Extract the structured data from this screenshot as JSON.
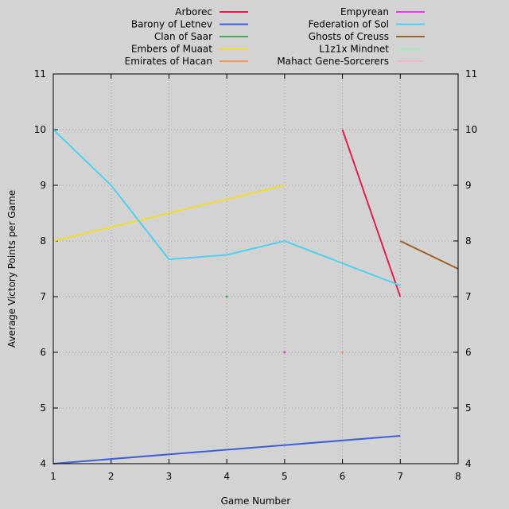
{
  "chart_data": {
    "type": "line",
    "title": "",
    "xlabel": "Game Number",
    "ylabel": "Average Victory Points per Game",
    "xlim": [
      1,
      8
    ],
    "ylim": [
      4,
      11
    ],
    "x_ticks": [
      1,
      2,
      3,
      4,
      5,
      6,
      7,
      8
    ],
    "y_ticks": [
      4,
      5,
      6,
      7,
      8,
      9,
      10,
      11
    ],
    "grid": true,
    "legend_position": "top",
    "series": [
      {
        "name": "Arborec",
        "color": "#e0204f",
        "points": [
          [
            6,
            10
          ],
          [
            7,
            7
          ]
        ]
      },
      {
        "name": "Barony of Letnev",
        "color": "#3f5fd8",
        "points": [
          [
            1,
            4
          ],
          [
            7,
            4.5
          ]
        ]
      },
      {
        "name": "Clan of Saar",
        "color": "#3fae5a",
        "points": [
          [
            4,
            7
          ]
        ]
      },
      {
        "name": "Embers of Muaat",
        "color": "#f2dc2a",
        "points": [
          [
            1,
            8
          ],
          [
            5,
            9
          ]
        ]
      },
      {
        "name": "Emirates of Hacan",
        "color": "#f0955a",
        "points": [
          [
            6,
            6
          ]
        ]
      },
      {
        "name": "Empyrean",
        "color": "#e040e0",
        "points": [
          [
            5,
            6
          ]
        ]
      },
      {
        "name": "Federation of Sol",
        "color": "#4fd0f0",
        "points": [
          [
            1,
            10
          ],
          [
            2,
            9
          ],
          [
            3,
            7.67
          ],
          [
            4,
            7.75
          ],
          [
            5,
            8
          ],
          [
            7,
            7.2
          ]
        ]
      },
      {
        "name": "Ghosts of Creuss",
        "color": "#a0602a",
        "points": [
          [
            7,
            8
          ],
          [
            8,
            7.5
          ]
        ]
      },
      {
        "name": "L1z1x Mindnet",
        "color": "#a8e8c0",
        "points": []
      },
      {
        "name": "Mahact Gene-Sorcerers",
        "color": "#f0b8c8",
        "points": []
      }
    ]
  }
}
